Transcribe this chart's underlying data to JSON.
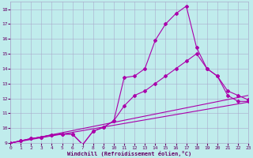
{
  "xlabel": "Windchill (Refroidissement éolien,°C)",
  "bg_color": "#c0ecec",
  "line_color": "#aa00aa",
  "grid_color": "#aaaacc",
  "text_color": "#660066",
  "xlim": [
    0,
    23
  ],
  "ylim": [
    9,
    18.5
  ],
  "xticks": [
    0,
    1,
    2,
    3,
    4,
    5,
    6,
    7,
    8,
    9,
    10,
    11,
    12,
    13,
    14,
    15,
    16,
    17,
    18,
    19,
    20,
    21,
    22,
    23
  ],
  "yticks": [
    9,
    10,
    11,
    12,
    13,
    14,
    15,
    16,
    17,
    18
  ],
  "curve1_x": [
    0,
    1,
    2,
    3,
    4,
    5,
    6,
    7,
    8,
    9,
    10,
    11,
    12,
    13,
    14,
    15,
    16,
    17,
    18,
    19,
    20,
    21,
    22,
    23
  ],
  "curve1_y": [
    9.0,
    9.15,
    9.3,
    9.4,
    9.55,
    9.6,
    9.6,
    8.9,
    9.8,
    10.05,
    10.5,
    13.4,
    13.5,
    14.0,
    15.9,
    17.0,
    17.7,
    18.2,
    15.4,
    14.0,
    13.5,
    12.2,
    11.8,
    11.8
  ],
  "curve2_x": [
    0,
    1,
    2,
    3,
    4,
    5,
    6,
    7,
    8,
    9,
    10,
    11,
    12,
    13,
    14,
    15,
    16,
    17,
    18,
    19,
    20,
    21,
    22,
    23
  ],
  "curve2_y": [
    9.0,
    9.15,
    9.3,
    9.4,
    9.55,
    9.6,
    9.6,
    8.9,
    9.8,
    10.05,
    10.5,
    11.5,
    12.2,
    12.5,
    13.0,
    13.5,
    14.0,
    14.5,
    15.0,
    14.0,
    13.5,
    12.5,
    12.2,
    11.9
  ],
  "line3_x": [
    0,
    23
  ],
  "line3_y": [
    9.0,
    12.2
  ],
  "line4_x": [
    0,
    23
  ],
  "line4_y": [
    9.0,
    11.75
  ]
}
